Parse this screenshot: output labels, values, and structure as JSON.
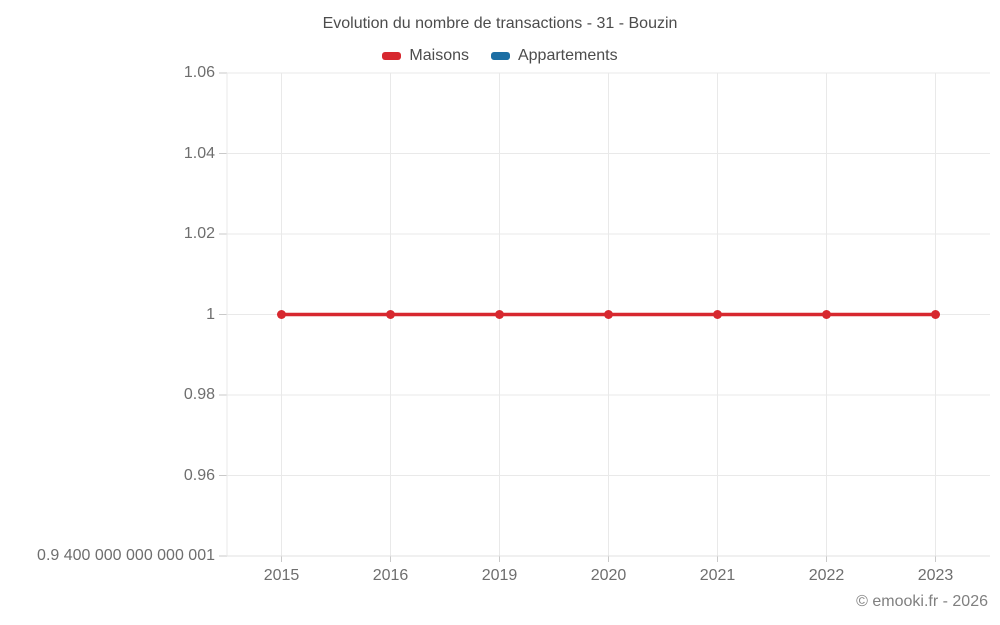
{
  "header": {
    "title": "Evolution du nombre de transactions - 31 - Bouzin"
  },
  "footer": {
    "copyright": "© emooki.fr - 2026"
  },
  "chart_data": {
    "type": "line",
    "title": "Evolution du nombre de transactions - 31 - Bouzin",
    "categories": [
      "2015",
      "2016",
      "2019",
      "2020",
      "2021",
      "2022",
      "2023"
    ],
    "series": [
      {
        "name": "Maisons",
        "color": "#d7282f",
        "values": [
          1,
          1,
          1,
          1,
          1,
          1,
          1
        ]
      },
      {
        "name": "Appartements",
        "color": "#1c6ea4",
        "values": []
      }
    ],
    "xlabel": "",
    "ylabel": "",
    "ylim": [
      0.94,
      1.06
    ],
    "y_ticks": {
      "values": [
        0.94,
        0.96,
        0.98,
        1,
        1.02,
        1.04,
        1.06
      ],
      "labels": [
        "0.9 400 000 000 000 001",
        "0.96",
        "0.98",
        "1",
        "1.02",
        "1.04",
        "1.06"
      ]
    },
    "grid": true,
    "legend_position": "top",
    "grid_color": "#e9e9e9",
    "tick_color": "#c9c9c9",
    "axis_label_color": "#6e6e6e"
  }
}
